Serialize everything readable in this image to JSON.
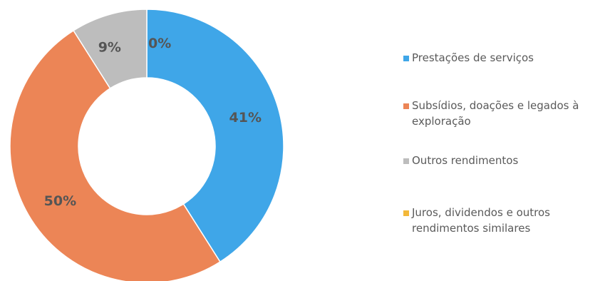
{
  "chart_data": {
    "type": "pie",
    "subtype": "donut",
    "slices": [
      {
        "name": "Prestações de serviços",
        "value": 41,
        "label": "41%",
        "color": "#3fa6e8"
      },
      {
        "name": "Subsídios, doações e legados à exploração",
        "value": 50,
        "label": "50%",
        "color": "#ec8556"
      },
      {
        "name": "Outros rendimentos",
        "value": 9,
        "label": "9%",
        "color": "#bdbdbd"
      },
      {
        "name": "Juros, dividendos e outros rendimentos similares",
        "value": 0,
        "label": "0%",
        "color": "#f3b83a"
      }
    ],
    "legend": {
      "placement": "right",
      "items": [
        {
          "lines": [
            "Prestações de serviços"
          ],
          "color": "#3fa6e8"
        },
        {
          "lines": [
            "Subsídios, doações e legados à",
            "exploração"
          ],
          "color": "#ec8556"
        },
        {
          "lines": [
            "Outros rendimentos"
          ],
          "color": "#bdbdbd"
        },
        {
          "lines": [
            "Juros, dividendos e outros",
            "rendimentos similares"
          ],
          "color": "#f3b83a"
        }
      ]
    }
  }
}
